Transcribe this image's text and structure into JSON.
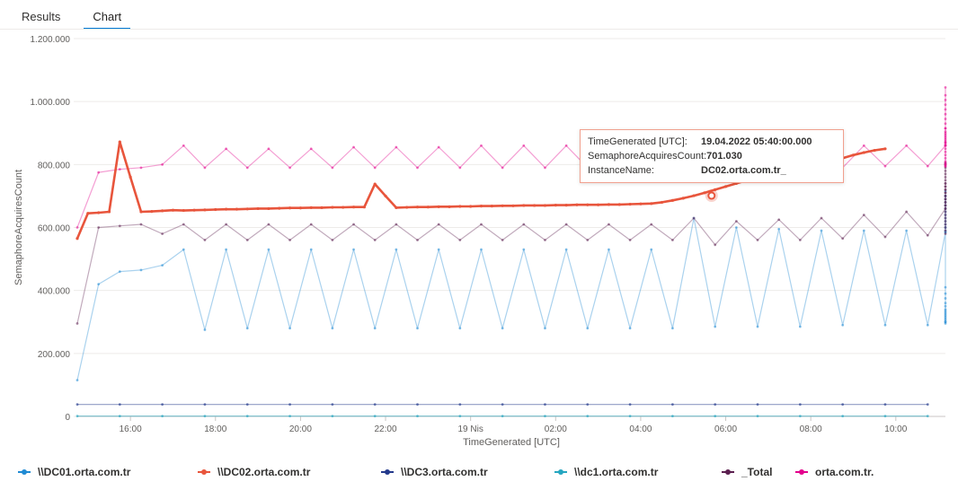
{
  "tabs": [
    {
      "label": "Results",
      "active": false
    },
    {
      "label": "Chart",
      "active": true
    }
  ],
  "chart_data": {
    "type": "line",
    "xlabel": "TimeGenerated [UTC]",
    "ylabel": "SemaphoreAcquiresCount",
    "ylim": [
      0,
      1200000
    ],
    "yticks": [
      0,
      200000,
      400000,
      600000,
      800000,
      1000000,
      1200000
    ],
    "ytick_labels": [
      "0",
      "200.000",
      "400.000",
      "600.000",
      "800.000",
      "1.000.000",
      "1.200.000"
    ],
    "x_range": [
      "2022-04-18 14:45",
      "2022-04-19 11:10"
    ],
    "xticks": [
      "2022-04-18 16:00",
      "2022-04-18 18:00",
      "2022-04-18 20:00",
      "2022-04-18 22:00",
      "2022-04-19 00:00",
      "2022-04-19 02:00",
      "2022-04-19 04:00",
      "2022-04-19 06:00",
      "2022-04-19 08:00",
      "2022-04-19 10:00"
    ],
    "xtick_labels": [
      "16:00",
      "18:00",
      "20:00",
      "22:00",
      "19 Nis",
      "02:00",
      "04:00",
      "06:00",
      "08:00",
      "10:00"
    ],
    "grid": true,
    "legend_position": "bottom",
    "series": [
      {
        "name": "\\\\DC01.orta.com.tr",
        "color": "#1f8ad3",
        "pattern": "sawtooth",
        "x_start": "2022-04-18 14:45",
        "step_minutes": 30,
        "values": [
          115000,
          420000,
          460000,
          465000,
          480000,
          530000,
          275000,
          530000,
          280000,
          530000,
          280000,
          530000,
          280000,
          530000,
          280000,
          530000,
          280000,
          530000,
          280000,
          530000,
          280000,
          530000,
          280000,
          530000,
          280000,
          530000,
          280000,
          530000,
          280000,
          630000,
          285000,
          600000,
          285000,
          595000,
          285000,
          590000,
          290000,
          590000,
          290000,
          590000,
          290000,
          585000,
          295000,
          585000,
          300000,
          590000,
          300000,
          600000,
          305000,
          600000,
          310000,
          610000,
          315000,
          620000,
          320000,
          630000,
          325000,
          640000,
          330000,
          650000,
          335000,
          660000,
          340000,
          670000,
          350000,
          680000,
          360000,
          690000,
          375000,
          700000,
          390000,
          715000,
          410000,
          700000
        ]
      },
      {
        "name": "\\\\DC02.orta.com.tr",
        "color": "#e8553c",
        "pattern": "line",
        "x_start": "2022-04-18 14:45",
        "step_minutes": 15,
        "values": [
          565000,
          645000,
          647000,
          650000,
          872000,
          760000,
          650000,
          651000,
          653000,
          655000,
          654000,
          655000,
          656000,
          657000,
          658000,
          658000,
          659000,
          660000,
          660000,
          661000,
          662000,
          662000,
          663000,
          663000,
          664000,
          664000,
          665000,
          665000,
          738000,
          700000,
          663000,
          664000,
          665000,
          665000,
          666000,
          666000,
          667000,
          667000,
          668000,
          668000,
          669000,
          669000,
          670000,
          670000,
          670000,
          671000,
          671000,
          672000,
          672000,
          672000,
          673000,
          673000,
          674000,
          675000,
          676000,
          680000,
          686000,
          693000,
          701030,
          710000,
          720000,
          730000,
          740000,
          750000,
          760000,
          770000,
          780000,
          790000,
          800000,
          805000,
          810000,
          815000,
          820000,
          830000,
          838000,
          845000,
          850000
        ]
      },
      {
        "name": "\\\\DC3.orta.com.tr",
        "color": "#243a8c",
        "pattern": "flat",
        "x_start": "2022-04-18 14:45",
        "step_minutes": 60,
        "values": [
          38000,
          38000,
          38000,
          38000,
          38000,
          38000,
          38000,
          38000,
          38000,
          38000,
          38000,
          38000,
          38000,
          38000,
          38000,
          38000,
          38000,
          38000,
          38000,
          38000,
          38000
        ]
      },
      {
        "name": "\\\\dc1.orta.com.tr",
        "color": "#25a6c0",
        "pattern": "flat",
        "x_start": "2022-04-18 14:45",
        "step_minutes": 60,
        "values": [
          1000,
          1000,
          1000,
          1000,
          1000,
          1000,
          1000,
          1000,
          1000,
          1000,
          1000,
          1000,
          1000,
          1000,
          1000,
          1000,
          1000,
          1000,
          1000,
          1000,
          1000
        ]
      },
      {
        "name": "_Total",
        "color": "#5b1f4f",
        "pattern": "sawtooth",
        "x_start": "2022-04-18 14:45",
        "step_minutes": 30,
        "values": [
          295000,
          600000,
          605000,
          610000,
          580000,
          610000,
          560000,
          610000,
          560000,
          610000,
          560000,
          610000,
          560000,
          610000,
          560000,
          610000,
          560000,
          610000,
          560000,
          610000,
          560000,
          610000,
          560000,
          610000,
          560000,
          610000,
          560000,
          610000,
          560000,
          630000,
          545000,
          620000,
          560000,
          625000,
          560000,
          630000,
          565000,
          640000,
          570000,
          650000,
          575000,
          660000,
          580000,
          670000,
          590000,
          680000,
          600000,
          690000,
          610000,
          700000,
          620000,
          710000,
          630000,
          720000,
          640000,
          730000,
          650000,
          740000,
          660000,
          750000,
          670000,
          760000,
          680000,
          770000,
          690000,
          780000,
          700000,
          790000,
          710000,
          800000,
          720000,
          805000,
          730000,
          740000
        ]
      },
      {
        "name": "orta.com.tr.",
        "color": "#e3008c",
        "pattern": "sawtooth",
        "x_start": "2022-04-18 14:45",
        "step_minutes": 30,
        "values": [
          600000,
          775000,
          785000,
          790000,
          800000,
          860000,
          790000,
          850000,
          790000,
          850000,
          790000,
          850000,
          790000,
          855000,
          790000,
          855000,
          790000,
          855000,
          790000,
          860000,
          790000,
          860000,
          790000,
          860000,
          790000,
          860000,
          790000,
          860000,
          790000,
          860000,
          795000,
          860000,
          790000,
          860000,
          790000,
          860000,
          790000,
          860000,
          795000,
          860000,
          795000,
          860000,
          795000,
          860000,
          795000,
          865000,
          800000,
          870000,
          800000,
          875000,
          805000,
          880000,
          810000,
          890000,
          820000,
          900000,
          830000,
          915000,
          840000,
          930000,
          850000,
          945000,
          860000,
          960000,
          870000,
          975000,
          885000,
          990000,
          895000,
          1005000,
          905000,
          1020000,
          915000,
          1045000
        ]
      }
    ],
    "tooltip": {
      "rows": [
        {
          "key": "TimeGenerated [UTC]:",
          "value": "19.04.2022 05:40:00.000"
        },
        {
          "key": "SemaphoreAcquiresCount:",
          "value": "701.030"
        },
        {
          "key": "InstanceName:",
          "value": "DC02.orta.com.tr_"
        }
      ],
      "point": {
        "x": "2022-04-19 05:40",
        "y": 701030,
        "series": "\\\\DC02.orta.com.tr"
      }
    }
  },
  "legend": [
    {
      "label": "\\\\DC01.orta.com.tr",
      "color": "#1f8ad3"
    },
    {
      "label": "\\\\DC02.orta.com.tr",
      "color": "#e8553c"
    },
    {
      "label": "\\\\DC3.orta.com.tr",
      "color": "#243a8c"
    },
    {
      "label": "\\\\dc1.orta.com.tr",
      "color": "#25a6c0"
    },
    {
      "label": "_Total",
      "color": "#5b1f4f"
    },
    {
      "label": "orta.com.tr.",
      "color": "#e3008c"
    }
  ]
}
